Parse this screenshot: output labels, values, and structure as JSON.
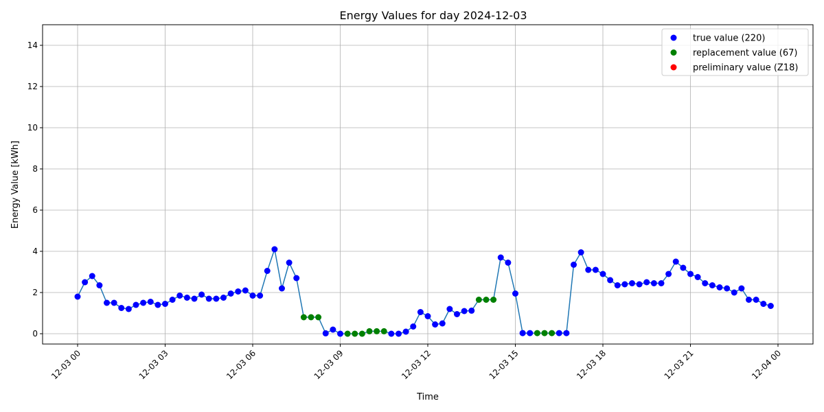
{
  "chart_data": {
    "type": "line",
    "title": "Energy Values for day 2024-12-03",
    "xlabel": "Time",
    "ylabel": "Energy Value [kWh]",
    "ylim": [
      -0.5,
      15
    ],
    "xlim_hours": [
      -1.2,
      25.2
    ],
    "grid": true,
    "legend_position": "top-right",
    "x_ticks": [
      {
        "hours": 0,
        "label": "12-03 00"
      },
      {
        "hours": 3,
        "label": "12-03 03"
      },
      {
        "hours": 6,
        "label": "12-03 06"
      },
      {
        "hours": 9,
        "label": "12-03 09"
      },
      {
        "hours": 12,
        "label": "12-03 12"
      },
      {
        "hours": 15,
        "label": "12-03 15"
      },
      {
        "hours": 18,
        "label": "12-03 18"
      },
      {
        "hours": 21,
        "label": "12-03 21"
      },
      {
        "hours": 24,
        "label": "12-04 00"
      }
    ],
    "y_ticks": [
      0,
      2,
      4,
      6,
      8,
      10,
      12,
      14
    ],
    "line_color": "#1f77b4",
    "categories": [
      {
        "code": "t",
        "name": "true value (220)",
        "color": "#0000ff"
      },
      {
        "code": "r",
        "name": "replacement value (67)",
        "color": "#008000"
      },
      {
        "code": "p",
        "name": "preliminary value (Z18)",
        "color": "#ff0000"
      }
    ],
    "points": [
      {
        "x": 0.0,
        "y": 1.8,
        "c": "t"
      },
      {
        "x": 0.25,
        "y": 2.5,
        "c": "t"
      },
      {
        "x": 0.5,
        "y": 2.8,
        "c": "t"
      },
      {
        "x": 0.75,
        "y": 2.35,
        "c": "t"
      },
      {
        "x": 1.0,
        "y": 1.5,
        "c": "t"
      },
      {
        "x": 1.25,
        "y": 1.5,
        "c": "t"
      },
      {
        "x": 1.5,
        "y": 1.25,
        "c": "t"
      },
      {
        "x": 1.75,
        "y": 1.2,
        "c": "t"
      },
      {
        "x": 2.0,
        "y": 1.4,
        "c": "t"
      },
      {
        "x": 2.25,
        "y": 1.5,
        "c": "t"
      },
      {
        "x": 2.5,
        "y": 1.55,
        "c": "t"
      },
      {
        "x": 2.75,
        "y": 1.4,
        "c": "t"
      },
      {
        "x": 3.0,
        "y": 1.45,
        "c": "t"
      },
      {
        "x": 3.25,
        "y": 1.65,
        "c": "t"
      },
      {
        "x": 3.5,
        "y": 1.85,
        "c": "t"
      },
      {
        "x": 3.75,
        "y": 1.75,
        "c": "t"
      },
      {
        "x": 4.0,
        "y": 1.7,
        "c": "t"
      },
      {
        "x": 4.25,
        "y": 1.9,
        "c": "t"
      },
      {
        "x": 4.5,
        "y": 1.7,
        "c": "t"
      },
      {
        "x": 4.75,
        "y": 1.7,
        "c": "t"
      },
      {
        "x": 5.0,
        "y": 1.75,
        "c": "t"
      },
      {
        "x": 5.25,
        "y": 1.95,
        "c": "t"
      },
      {
        "x": 5.5,
        "y": 2.05,
        "c": "t"
      },
      {
        "x": 5.75,
        "y": 2.1,
        "c": "t"
      },
      {
        "x": 6.0,
        "y": 1.85,
        "c": "t"
      },
      {
        "x": 6.25,
        "y": 1.85,
        "c": "t"
      },
      {
        "x": 6.5,
        "y": 3.05,
        "c": "t"
      },
      {
        "x": 6.75,
        "y": 4.1,
        "c": "t"
      },
      {
        "x": 7.0,
        "y": 2.2,
        "c": "t"
      },
      {
        "x": 7.25,
        "y": 3.45,
        "c": "t"
      },
      {
        "x": 7.5,
        "y": 2.7,
        "c": "t"
      },
      {
        "x": 7.75,
        "y": 0.8,
        "c": "r"
      },
      {
        "x": 8.0,
        "y": 0.8,
        "c": "r"
      },
      {
        "x": 8.25,
        "y": 0.8,
        "c": "r"
      },
      {
        "x": 8.5,
        "y": 0.02,
        "c": "t"
      },
      {
        "x": 8.75,
        "y": 0.2,
        "c": "t"
      },
      {
        "x": 9.0,
        "y": 0.0,
        "c": "t"
      },
      {
        "x": 9.25,
        "y": 0.0,
        "c": "r"
      },
      {
        "x": 9.5,
        "y": 0.0,
        "c": "r"
      },
      {
        "x": 9.75,
        "y": 0.0,
        "c": "r"
      },
      {
        "x": 10.0,
        "y": 0.12,
        "c": "r"
      },
      {
        "x": 10.25,
        "y": 0.12,
        "c": "r"
      },
      {
        "x": 10.5,
        "y": 0.12,
        "c": "r"
      },
      {
        "x": 10.75,
        "y": 0.0,
        "c": "t"
      },
      {
        "x": 11.0,
        "y": 0.0,
        "c": "t"
      },
      {
        "x": 11.25,
        "y": 0.1,
        "c": "t"
      },
      {
        "x": 11.5,
        "y": 0.35,
        "c": "t"
      },
      {
        "x": 11.75,
        "y": 1.05,
        "c": "t"
      },
      {
        "x": 12.0,
        "y": 0.85,
        "c": "t"
      },
      {
        "x": 12.25,
        "y": 0.45,
        "c": "t"
      },
      {
        "x": 12.5,
        "y": 0.5,
        "c": "t"
      },
      {
        "x": 12.75,
        "y": 1.2,
        "c": "t"
      },
      {
        "x": 13.0,
        "y": 0.95,
        "c": "t"
      },
      {
        "x": 13.25,
        "y": 1.1,
        "c": "t"
      },
      {
        "x": 13.5,
        "y": 1.12,
        "c": "t"
      },
      {
        "x": 13.75,
        "y": 1.65,
        "c": "r"
      },
      {
        "x": 14.0,
        "y": 1.65,
        "c": "r"
      },
      {
        "x": 14.25,
        "y": 1.65,
        "c": "r"
      },
      {
        "x": 14.5,
        "y": 3.7,
        "c": "t"
      },
      {
        "x": 14.75,
        "y": 3.45,
        "c": "t"
      },
      {
        "x": 15.0,
        "y": 1.95,
        "c": "t"
      },
      {
        "x": 15.25,
        "y": 0.03,
        "c": "t"
      },
      {
        "x": 15.5,
        "y": 0.03,
        "c": "t"
      },
      {
        "x": 15.75,
        "y": 0.03,
        "c": "r"
      },
      {
        "x": 16.0,
        "y": 0.03,
        "c": "r"
      },
      {
        "x": 16.25,
        "y": 0.03,
        "c": "r"
      },
      {
        "x": 16.5,
        "y": 0.03,
        "c": "t"
      },
      {
        "x": 16.75,
        "y": 0.03,
        "c": "t"
      },
      {
        "x": 17.0,
        "y": 3.35,
        "c": "t"
      },
      {
        "x": 17.25,
        "y": 3.95,
        "c": "t"
      },
      {
        "x": 17.5,
        "y": 3.1,
        "c": "t"
      },
      {
        "x": 17.75,
        "y": 3.1,
        "c": "t"
      },
      {
        "x": 18.0,
        "y": 2.9,
        "c": "t"
      },
      {
        "x": 18.25,
        "y": 2.6,
        "c": "t"
      },
      {
        "x": 18.5,
        "y": 2.35,
        "c": "t"
      },
      {
        "x": 18.75,
        "y": 2.4,
        "c": "t"
      },
      {
        "x": 19.0,
        "y": 2.45,
        "c": "t"
      },
      {
        "x": 19.25,
        "y": 2.4,
        "c": "t"
      },
      {
        "x": 19.5,
        "y": 2.5,
        "c": "t"
      },
      {
        "x": 19.75,
        "y": 2.45,
        "c": "t"
      },
      {
        "x": 20.0,
        "y": 2.45,
        "c": "t"
      },
      {
        "x": 20.25,
        "y": 2.9,
        "c": "t"
      },
      {
        "x": 20.5,
        "y": 3.5,
        "c": "t"
      },
      {
        "x": 20.75,
        "y": 3.2,
        "c": "t"
      },
      {
        "x": 21.0,
        "y": 2.9,
        "c": "t"
      },
      {
        "x": 21.25,
        "y": 2.75,
        "c": "t"
      },
      {
        "x": 21.5,
        "y": 2.45,
        "c": "t"
      },
      {
        "x": 21.75,
        "y": 2.35,
        "c": "t"
      },
      {
        "x": 22.0,
        "y": 2.25,
        "c": "t"
      },
      {
        "x": 22.25,
        "y": 2.2,
        "c": "t"
      },
      {
        "x": 22.5,
        "y": 2.0,
        "c": "t"
      },
      {
        "x": 22.75,
        "y": 2.2,
        "c": "t"
      },
      {
        "x": 23.0,
        "y": 1.65,
        "c": "t"
      },
      {
        "x": 23.25,
        "y": 1.65,
        "c": "t"
      },
      {
        "x": 23.5,
        "y": 1.45,
        "c": "t"
      },
      {
        "x": 23.75,
        "y": 1.35,
        "c": "t"
      }
    ]
  }
}
